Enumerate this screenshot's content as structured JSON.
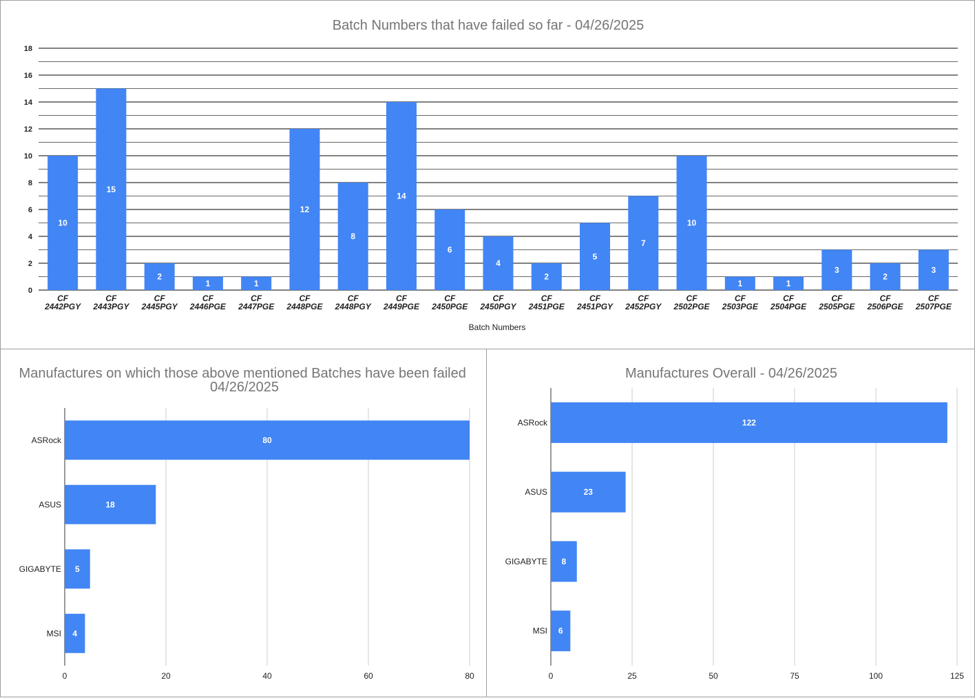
{
  "colors": {
    "bar": "#4285f4",
    "grid_major": "#000000",
    "grid_minor": "#666666",
    "grid_light": "#cccccc",
    "title": "#757575"
  },
  "chart_data": [
    {
      "type": "bar",
      "title": "Batch Numbers that have failed so far - 04/26/2025",
      "xlabel": "Batch Numbers",
      "ylabel": "",
      "ylim": [
        0,
        18
      ],
      "yticks": [
        0,
        2,
        4,
        6,
        8,
        10,
        12,
        14,
        16,
        18
      ],
      "grid": true,
      "categories": [
        "CF 2442PGY",
        "CF 2443PGY",
        "CF 2445PGY",
        "CF 2446PGE",
        "CF 2447PGE",
        "CF 2448PGE",
        "CF 2448PGY",
        "CF 2449PGE",
        "CF 2450PGE",
        "CF 2450PGY",
        "CF 2451PGE",
        "CF 2451PGY",
        "CF 2452PGY",
        "CF 2502PGE",
        "CF 2503PGE",
        "CF 2504PGE",
        "CF 2505PGE",
        "CF 2506PGE",
        "CF 2507PGE"
      ],
      "values": [
        10,
        15,
        2,
        1,
        1,
        12,
        8,
        14,
        6,
        4,
        2,
        5,
        7,
        10,
        1,
        1,
        3,
        2,
        3
      ]
    },
    {
      "type": "bar",
      "orientation": "horizontal",
      "title": "Manufactures on which those above mentioned Batches have been failed 04/26/2025",
      "xlabel": "",
      "ylabel": "",
      "xlim": [
        0,
        80
      ],
      "xticks": [
        0,
        20,
        40,
        60,
        80
      ],
      "grid": true,
      "categories": [
        "ASRock",
        "ASUS",
        "GIGABYTE",
        "MSI"
      ],
      "values": [
        80,
        18,
        5,
        4
      ]
    },
    {
      "type": "bar",
      "orientation": "horizontal",
      "title": "Manufactures Overall - 04/26/2025",
      "xlabel": "",
      "ylabel": "",
      "xlim": [
        0,
        125
      ],
      "xticks": [
        0,
        25,
        50,
        75,
        100,
        125
      ],
      "grid": true,
      "categories": [
        "ASRock",
        "ASUS",
        "GIGABYTE",
        "MSI"
      ],
      "values": [
        122,
        23,
        8,
        6
      ]
    }
  ]
}
